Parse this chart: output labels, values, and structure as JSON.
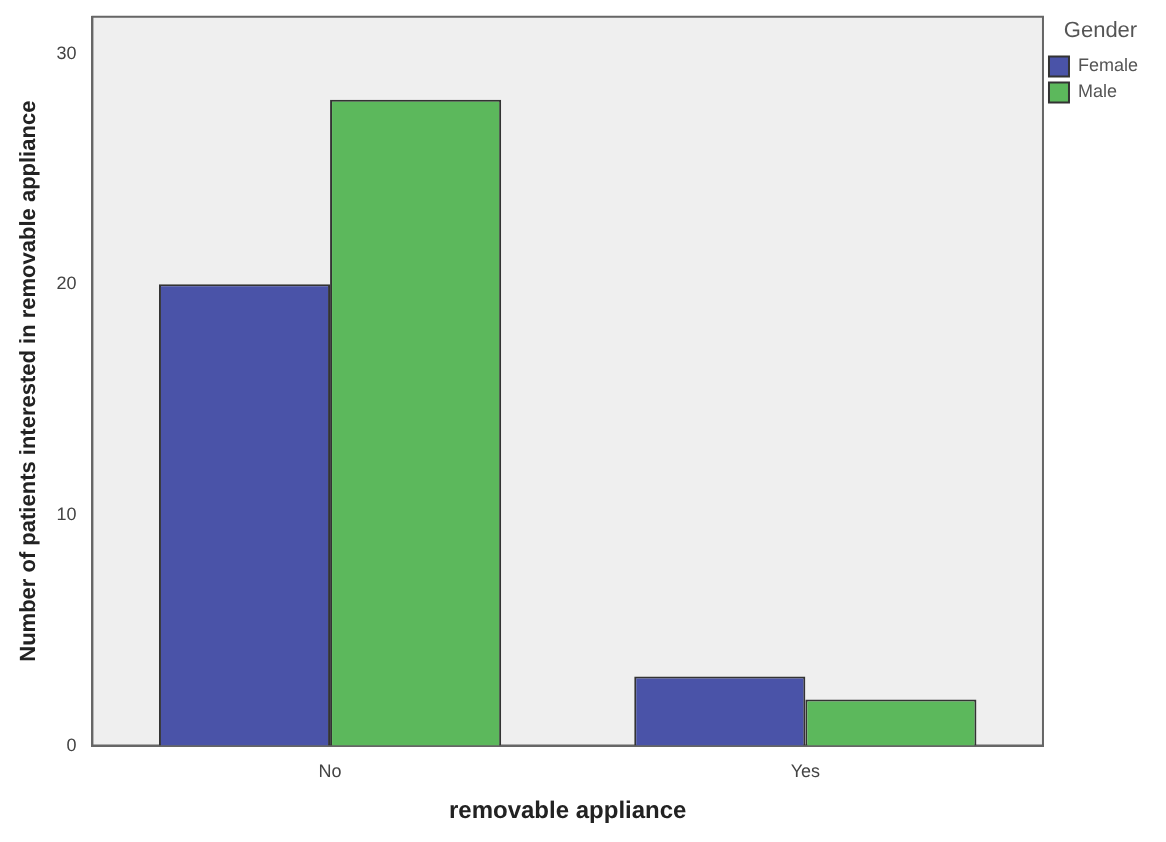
{
  "chart_data": {
    "type": "bar",
    "xlabel": "removable appliance",
    "ylabel": "Number of patients interested in removable appliance",
    "legend_title": "Gender",
    "categories": [
      "No",
      "Yes"
    ],
    "series": [
      {
        "name": "Female",
        "color": "#4a53a8",
        "values": [
          20,
          3
        ]
      },
      {
        "name": "Male",
        "color": "#5cb85c",
        "values": [
          28,
          2
        ]
      }
    ],
    "ylim": [
      0,
      31.6
    ],
    "yticks": [
      0,
      10,
      20,
      30
    ],
    "grid": false,
    "legend": "top right"
  }
}
